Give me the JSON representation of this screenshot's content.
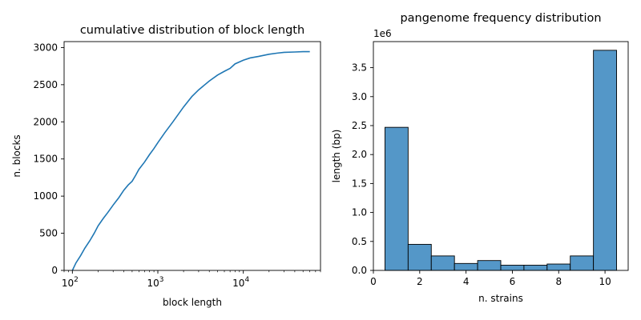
{
  "chart_data": [
    {
      "type": "line",
      "title": "cumulative distribution of block length",
      "xlabel": "block length",
      "ylabel": "n. blocks",
      "xscale": "log",
      "xlim": [
        80,
        80000
      ],
      "ylim": [
        0,
        3080
      ],
      "xticks": [
        {
          "value": 100,
          "base": "10",
          "exp": "2"
        },
        {
          "value": 1000,
          "base": "10",
          "exp": "3"
        },
        {
          "value": 10000,
          "base": "10",
          "exp": "4"
        }
      ],
      "yticks": [
        "0",
        "500",
        "1000",
        "1500",
        "2000",
        "2500",
        "3000"
      ],
      "grid": false,
      "color": "#1f77b4",
      "series": [
        {
          "x": [
            100,
            110,
            125,
            140,
            160,
            180,
            200,
            230,
            260,
            300,
            350,
            400,
            450,
            500,
            550,
            600,
            700,
            800,
            900,
            1000,
            1200,
            1500,
            2000,
            2500,
            3000,
            4000,
            5000,
            6000,
            7000,
            8000,
            10000,
            12000,
            15000,
            20000,
            25000,
            30000,
            40000,
            50000,
            60000
          ],
          "y": [
            0,
            100,
            200,
            300,
            400,
            500,
            600,
            700,
            780,
            880,
            980,
            1080,
            1150,
            1200,
            1280,
            1360,
            1460,
            1560,
            1640,
            1720,
            1850,
            2000,
            2200,
            2340,
            2430,
            2550,
            2630,
            2680,
            2720,
            2780,
            2830,
            2860,
            2880,
            2910,
            2925,
            2935,
            2940,
            2945,
            2945
          ]
        }
      ]
    },
    {
      "type": "bar",
      "title": "pangenome frequency distribution",
      "xlabel": "n. strains",
      "ylabel": "length (bp)",
      "offset_label": "1e6",
      "xlim": [
        0,
        11
      ],
      "ylim": [
        0,
        3.95
      ],
      "xticks": [
        "0",
        "2",
        "4",
        "6",
        "8",
        "10"
      ],
      "yticks": [
        "0.0",
        "0.5",
        "1.0",
        "1.5",
        "2.0",
        "2.5",
        "3.0",
        "3.5"
      ],
      "grid": false,
      "color": "#5497c8",
      "categories": [
        1,
        2,
        3,
        4,
        5,
        6,
        7,
        8,
        9,
        10
      ],
      "values": [
        2.47,
        0.45,
        0.25,
        0.12,
        0.17,
        0.09,
        0.09,
        0.11,
        0.25,
        3.8
      ]
    }
  ]
}
